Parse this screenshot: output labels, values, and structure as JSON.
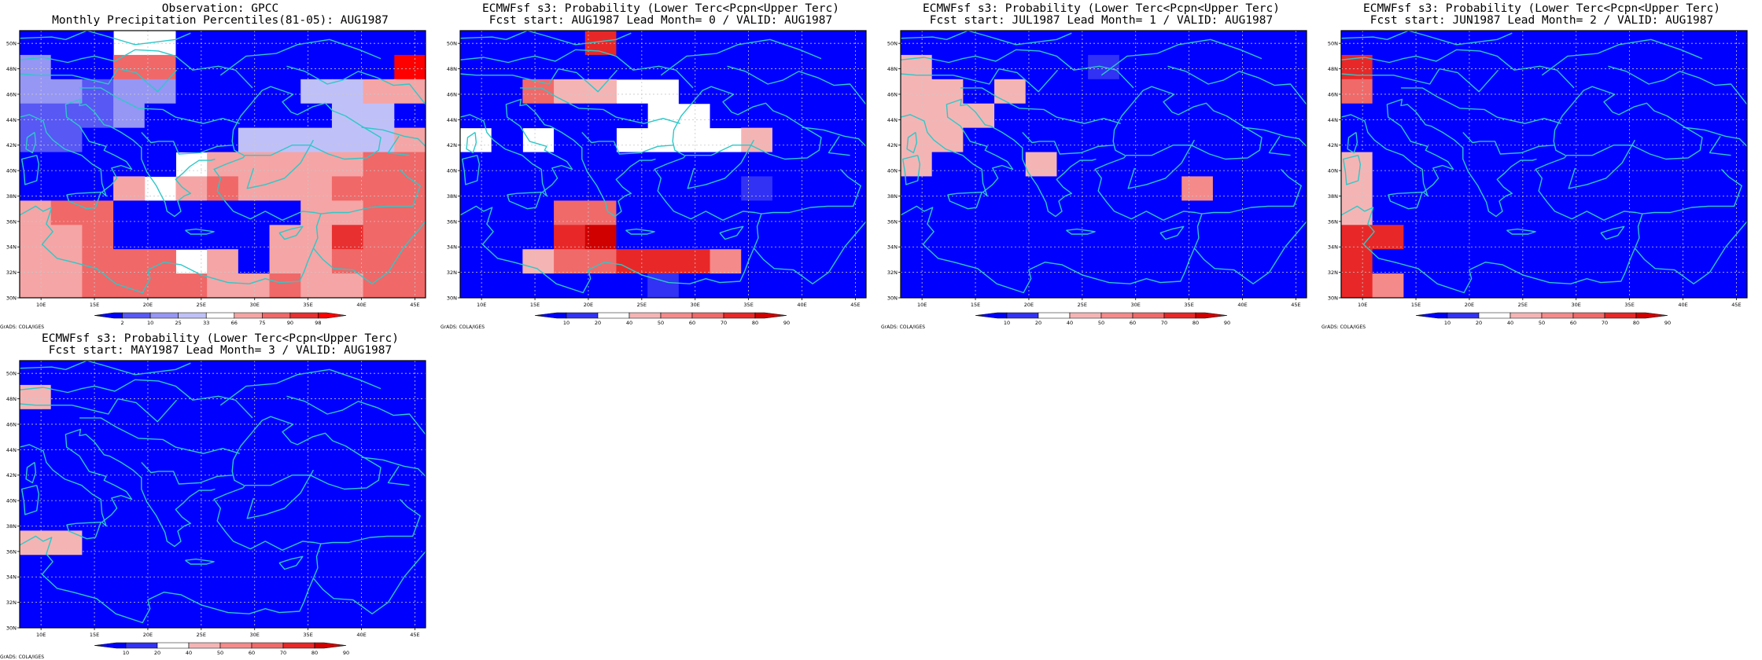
{
  "palettes": {
    "percentile": [
      "#0000ff",
      "#5858f5",
      "#9696f5",
      "#c0c0f8",
      "#ffffff",
      "#f5a5a5",
      "#f06868",
      "#e83030",
      "#ff0000"
    ],
    "probability": [
      "#0000ff",
      "#3232f5",
      "#ffffff",
      "#f5b4b4",
      "#f58a8a",
      "#f06a6a",
      "#e82828",
      "#d00000"
    ]
  },
  "axis": {
    "lat_labels": [
      "30N",
      "32N",
      "34N",
      "36N",
      "38N",
      "40N",
      "42N",
      "44N",
      "46N",
      "48N",
      "50N"
    ],
    "lon_labels": [
      "10E",
      "15E",
      "20E",
      "25E",
      "30E",
      "35E",
      "40E",
      "45E"
    ]
  },
  "coast_color": "#2ec8c8",
  "panels": [
    {
      "id": "obs",
      "title1": "Observation: GPCC",
      "title2": "Monthly Precipitation Percentiles(81-05): AUG1987",
      "footer": "GrADS: COLA/IGES",
      "palette": "percentile",
      "colorbar_labels": [
        "2",
        "10",
        "25",
        "33",
        "66",
        "75",
        "90",
        "98"
      ],
      "grid": [
        "0004400000000",
        "2006600000008",
        "2212200003355",
        "1112000000330",
        "1100000333335",
        "0000045555566",
        "0005456555666",
        "5660000005566",
        "5560000055766",
        "5566645055666",
        "5566665565566"
      ]
    },
    {
      "id": "lead0",
      "title1": "ECMWFsf s3: Probability (Lower Terc<Pcpn<Upper Terc)",
      "title2": "Fcst start: AUG1987  Lead Month= 0 / VALID: AUG1987",
      "footer": "GrADS: COLA/IGES",
      "palette": "probability",
      "colorbar_labels": [
        "10",
        "20",
        "40",
        "50",
        "60",
        "70",
        "80",
        "90"
      ],
      "grid": [
        "0000600000000",
        "0000000000000",
        "0053322000000",
        "0000002200000",
        "2020022223000",
        "0000000000000",
        "0000000001000",
        "0005500000000",
        "0006700000000",
        "0035566640000",
        "0000001000000"
      ]
    },
    {
      "id": "lead1",
      "title1": "ECMWFsf s3: Probability (Lower Terc<Pcpn<Upper Terc)",
      "title2": "Fcst start: JUL1987  Lead Month= 1 / VALID: AUG1987",
      "footer": "GrADS: COLA/IGES",
      "palette": "probability",
      "colorbar_labels": [
        "10",
        "20",
        "40",
        "50",
        "60",
        "70",
        "80",
        "90"
      ],
      "grid": [
        "0000000000000",
        "3000001000000",
        "3303000000000",
        "3330000000000",
        "3300000000000",
        "3000300000000",
        "0000000004000",
        "0000000000000",
        "0000000000000",
        "0000000000000",
        "0000000000000"
      ]
    },
    {
      "id": "lead2",
      "title1": "ECMWFsf s3: Probability (Lower Terc<Pcpn<Upper Terc)",
      "title2": "Fcst start: JUN1987  Lead Month= 2 / VALID: AUG1987",
      "footer": "GrADS: COLA/IGES",
      "palette": "probability",
      "colorbar_labels": [
        "10",
        "20",
        "40",
        "50",
        "60",
        "70",
        "80",
        "90"
      ],
      "grid": [
        "0000000000000",
        "6000000000000",
        "5000000000000",
        "0000000000000",
        "0000000000000",
        "3000000000000",
        "3000000000000",
        "3000000000000",
        "6600000000000",
        "6000000000000",
        "6400000000000"
      ]
    },
    {
      "id": "lead3",
      "title1": "ECMWFsf s3: Probability (Lower Terc<Pcpn<Upper Terc)",
      "title2": "Fcst start: MAY1987  Lead Month= 3 / VALID: AUG1987",
      "footer": "GrADS: COLA/IGES",
      "palette": "probability",
      "colorbar_labels": [
        "10",
        "20",
        "40",
        "50",
        "60",
        "70",
        "80",
        "90"
      ],
      "grid": [
        "0000000000000",
        "3000000000000",
        "0000000000000",
        "0000000000000",
        "0000000000000",
        "0000000000000",
        "0000000000000",
        "3300000000000",
        "0000000000000",
        "0000000000000",
        "0000000000000"
      ]
    }
  ]
}
